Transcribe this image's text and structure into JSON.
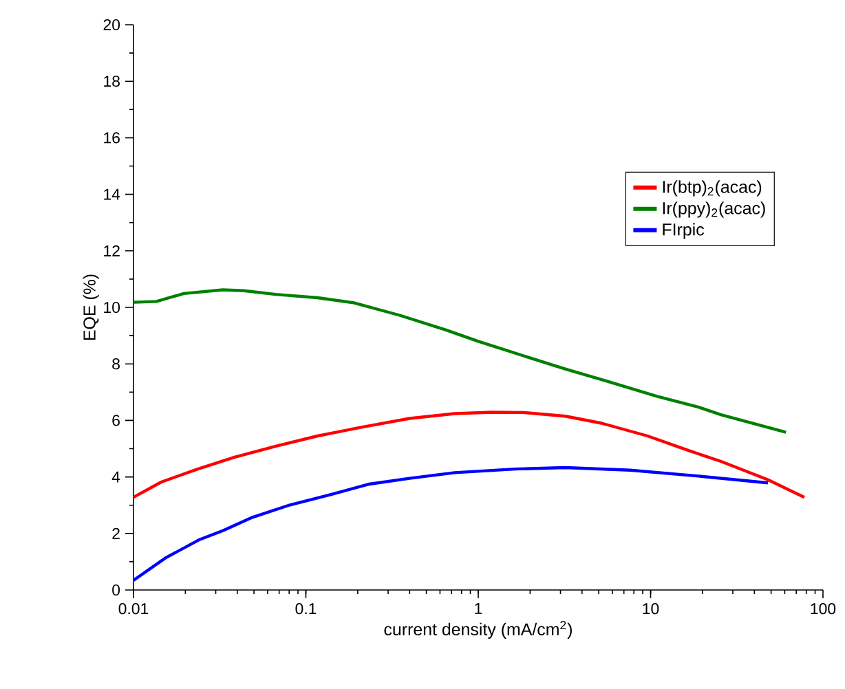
{
  "chart_data": {
    "type": "line",
    "xlabel": "current density (mA/cm$^{2}$)",
    "ylabel": "EQE (%)",
    "log": "x",
    "legend": "right",
    "grid": false,
    "marker": "none",
    "line_style": "solid",
    "xlim": [
      0.01,
      100
    ],
    "xticks": [
      0.01,
      0.1,
      1,
      10,
      100
    ],
    "ylim": [
      0,
      20
    ],
    "yticks": [
      0,
      2,
      4,
      6,
      8,
      10,
      12,
      14,
      16,
      18,
      20
    ],
    "series": [
      {
        "name": "Ir(btp)$_{2}$(acac)",
        "color": "#ff0000",
        "x": [
          0.01,
          0.0145,
          0.0236,
          0.0386,
          0.067,
          0.117,
          0.215,
          0.4,
          0.73,
          1.2,
          1.82,
          3.2,
          5.2,
          9.6,
          16.7,
          25.6,
          48,
          78
        ],
        "values": [
          3.28,
          3.82,
          4.28,
          4.7,
          5.09,
          5.45,
          5.77,
          6.07,
          6.24,
          6.29,
          6.28,
          6.15,
          5.9,
          5.45,
          4.93,
          4.55,
          3.9,
          3.28
        ]
      },
      {
        "name": "Ir(ppy)$_{2}$(acac)",
        "color": "#008000",
        "x": [
          0.01,
          0.0136,
          0.0196,
          0.033,
          0.0437,
          0.067,
          0.117,
          0.19,
          0.35,
          0.65,
          1,
          1.82,
          3.2,
          5.5,
          10.9,
          19,
          25.6,
          61
        ],
        "values": [
          10.18,
          10.21,
          10.49,
          10.62,
          10.59,
          10.46,
          10.34,
          10.16,
          9.72,
          9.2,
          8.8,
          8.29,
          7.82,
          7.4,
          6.85,
          6.47,
          6.2,
          5.58
        ]
      },
      {
        "name": "FIrpic",
        "color": "#0000ff",
        "x": [
          0.01,
          0.0154,
          0.0243,
          0.033,
          0.049,
          0.081,
          0.14,
          0.23,
          0.4,
          0.73,
          1.63,
          3.2,
          7.6,
          19,
          48
        ],
        "values": [
          0.34,
          1.14,
          1.79,
          2.1,
          2.57,
          3.01,
          3.38,
          3.74,
          3.95,
          4.15,
          4.28,
          4.33,
          4.24,
          4.03,
          3.79
        ]
      }
    ]
  }
}
